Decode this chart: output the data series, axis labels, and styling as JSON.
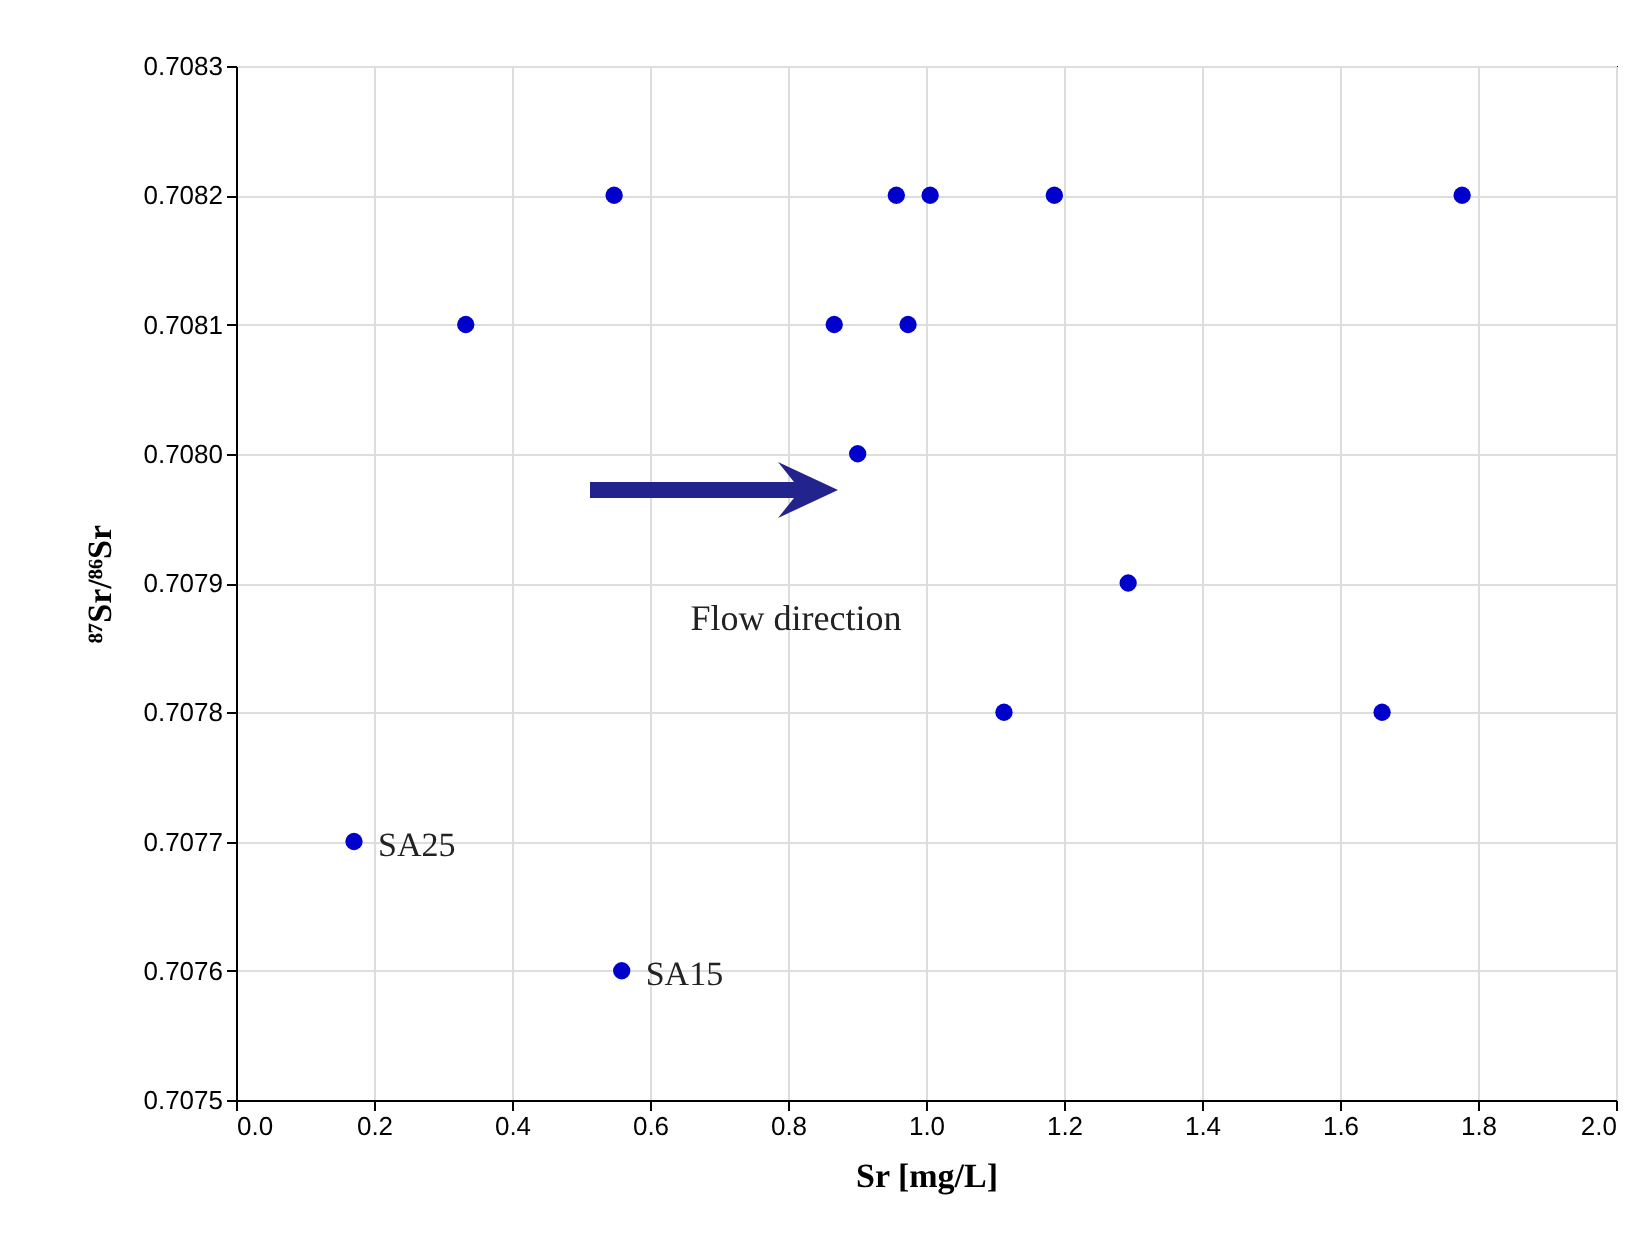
{
  "chart_data": {
    "type": "scatter",
    "xlabel": "Sr [mg/L]",
    "ylabel": "⁸⁷Sr/⁸⁶Sr",
    "x": [
      0.171,
      0.333,
      0.548,
      0.559,
      0.867,
      0.901,
      0.957,
      0.974,
      1.006,
      1.113,
      1.186,
      1.293,
      1.661,
      1.777
    ],
    "series": [
      {
        "color": "#0000cc",
        "values": [
          0.7077,
          0.7081,
          0.7082,
          0.7076,
          0.7081,
          0.708,
          0.7082,
          0.7081,
          0.7082,
          0.7078,
          0.7082,
          0.7079,
          0.7078,
          0.7082
        ]
      }
    ],
    "marker": "circle",
    "grid": true,
    "legend": false,
    "xlim": [
      0,
      2
    ],
    "xticks": [
      {
        "value": 0,
        "label": "0.0"
      },
      {
        "value": 0.2,
        "label": "0.2"
      },
      {
        "value": 0.4,
        "label": "0.4"
      },
      {
        "value": 0.6,
        "label": "0.6"
      },
      {
        "value": 0.8,
        "label": "0.8"
      },
      {
        "value": 1,
        "label": "1.0"
      },
      {
        "value": 1.2,
        "label": "1.2"
      },
      {
        "value": 1.4,
        "label": "1.4"
      },
      {
        "value": 1.6,
        "label": "1.6"
      },
      {
        "value": 1.8,
        "label": "1.8"
      },
      {
        "value": 2,
        "label": "2.0"
      }
    ],
    "ylim": [
      0.7075,
      0.7083
    ],
    "yticks": [
      {
        "value": 0.7075,
        "label": "0.7075"
      },
      {
        "value": 0.7076,
        "label": "0.7076"
      },
      {
        "value": 0.7077,
        "label": "0.7077"
      },
      {
        "value": 0.7078,
        "label": "0.7078"
      },
      {
        "value": 0.7079,
        "label": "0.7079"
      },
      {
        "value": 0.708,
        "label": "0.7080"
      },
      {
        "value": 0.7081,
        "label": "0.7081"
      },
      {
        "value": 0.7082,
        "label": "0.7082"
      },
      {
        "value": 0.7083,
        "label": "0.7083"
      }
    ],
    "annotations": [
      {
        "text": "SA25",
        "x": 0.171,
        "y": 0.7077
      },
      {
        "text": "SA15",
        "x": 0.559,
        "y": 0.7076
      },
      "Flow direction"
    ]
  }
}
